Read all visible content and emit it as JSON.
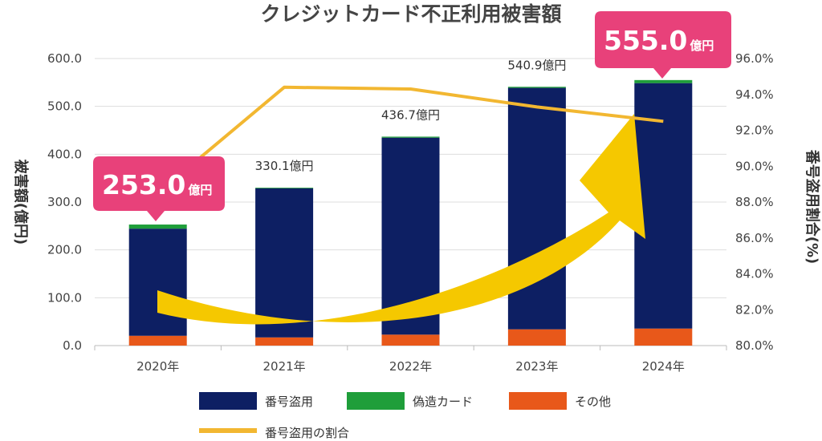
{
  "chart_data": {
    "type": "bar",
    "title": "クレジットカード不正利用被害額",
    "ylabel": "被害額(億円)",
    "y2label": "番号盗用割合(%)",
    "ylim": [
      0,
      600
    ],
    "y2lim": [
      80,
      96
    ],
    "yticks": [
      "0.0",
      "100.0",
      "200.0",
      "300.0",
      "400.0",
      "500.0",
      "600.0"
    ],
    "y2ticks": [
      "80.0%",
      "82.0%",
      "84.0%",
      "86.0%",
      "88.0%",
      "90.0%",
      "92.0%",
      "94.0%",
      "96.0%"
    ],
    "categories": [
      "2020年",
      "2021年",
      "2022年",
      "2023年",
      "2024年"
    ],
    "stacked": true,
    "series": [
      {
        "name": "番号盗用",
        "color": "#0d1f63",
        "values": [
          223.9,
          311.7,
          411.7,
          504.7,
          513.0
        ]
      },
      {
        "name": "偽造カード",
        "color": "#1f9e3a",
        "values": [
          8.6,
          1.3,
          2.1,
          2.2,
          6.4
        ]
      },
      {
        "name": "その他",
        "color": "#e8581a",
        "values": [
          20.5,
          17.1,
          22.9,
          34.0,
          35.6
        ]
      }
    ],
    "line_series": {
      "name": "番号盗用の割合",
      "color": "#f2b731",
      "axis": "right",
      "values": [
        88.5,
        94.4,
        94.3,
        93.3,
        92.5
      ]
    },
    "total_labels": [
      "253.0億円",
      "330.1億円",
      "436.7億円",
      "540.9億円",
      "555.0億円"
    ],
    "callouts": [
      {
        "value": "253.0",
        "unit": "億円",
        "color": "#e8417a"
      },
      {
        "value": "555.0",
        "unit": "億円",
        "color": "#e8417a"
      }
    ],
    "arrow_color": "#f5c800",
    "grid": true,
    "legend_position": "bottom"
  }
}
